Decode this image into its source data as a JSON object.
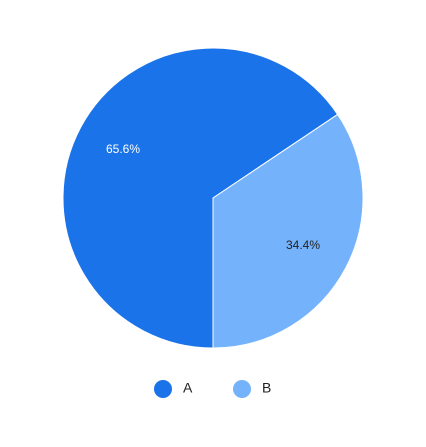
{
  "chart_data": {
    "type": "pie",
    "title": "",
    "categories": [
      "A",
      "B"
    ],
    "values": [
      65.6,
      34.4
    ],
    "labels": [
      "65.6%",
      "34.4%"
    ],
    "colors": [
      "#1a73e8",
      "#75b2fc"
    ],
    "label_colors": [
      "#ffffff",
      "#222222"
    ],
    "legend_placement": "bottom",
    "start_angle_deg": 180,
    "direction": "clockwise"
  }
}
